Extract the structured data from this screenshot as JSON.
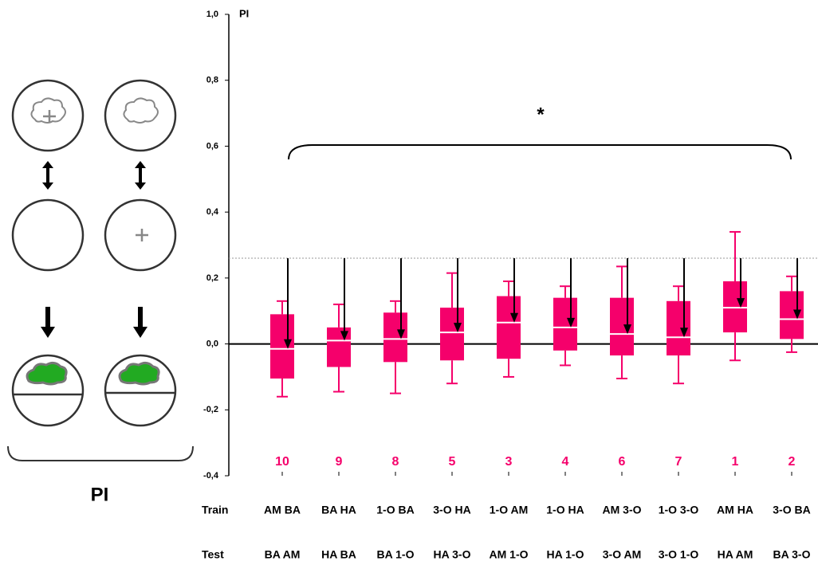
{
  "chart_data": {
    "type": "box",
    "y_label": "PI",
    "annotation": "*",
    "color": "#f5006b",
    "median_color": "#ffffff",
    "row_labels": [
      "Train",
      "Test"
    ],
    "categories": [
      "AM BA",
      "BA HA",
      "1-O BA",
      "3-O HA",
      "1-O AM",
      "1-O HA",
      "AM 3-O",
      "1-O 3-O",
      "AM HA",
      "3-O BA"
    ],
    "test_categories": [
      "BA AM",
      "HA BA",
      "BA 1-O",
      "HA 3-O",
      "AM 1-O",
      "HA 1-O",
      "3-O AM",
      "3-O 1-O",
      "HA AM",
      "BA 3-O"
    ],
    "ranks": [
      "10",
      "9",
      "8",
      "5",
      "3",
      "4",
      "6",
      "7",
      "1",
      "2"
    ],
    "boxes": [
      {
        "whisker_low": -0.16,
        "q1": -0.105,
        "median": -0.015,
        "q3": 0.09,
        "whisker_high": 0.13
      },
      {
        "whisker_low": -0.145,
        "q1": -0.07,
        "median": 0.01,
        "q3": 0.05,
        "whisker_high": 0.12
      },
      {
        "whisker_low": -0.15,
        "q1": -0.055,
        "median": 0.015,
        "q3": 0.095,
        "whisker_high": 0.13
      },
      {
        "whisker_low": -0.12,
        "q1": -0.05,
        "median": 0.035,
        "q3": 0.11,
        "whisker_high": 0.215
      },
      {
        "whisker_low": -0.1,
        "q1": -0.045,
        "median": 0.065,
        "q3": 0.145,
        "whisker_high": 0.19
      },
      {
        "whisker_low": -0.065,
        "q1": -0.02,
        "median": 0.05,
        "q3": 0.14,
        "whisker_high": 0.175
      },
      {
        "whisker_low": -0.105,
        "q1": -0.035,
        "median": 0.03,
        "q3": 0.14,
        "whisker_high": 0.235
      },
      {
        "whisker_low": -0.12,
        "q1": -0.035,
        "median": 0.02,
        "q3": 0.13,
        "whisker_high": 0.175
      },
      {
        "whisker_low": -0.05,
        "q1": 0.035,
        "median": 0.11,
        "q3": 0.19,
        "whisker_high": 0.34
      },
      {
        "whisker_low": -0.025,
        "q1": 0.015,
        "median": 0.075,
        "q3": 0.16,
        "whisker_high": 0.205
      }
    ],
    "reference_line": 0.26,
    "ylim": [
      -0.4,
      1.0
    ],
    "yticks": [
      {
        "value": -0.4,
        "label": "-0,4"
      },
      {
        "value": -0.2,
        "label": "-0,2"
      },
      {
        "value": 0,
        "label": "0,0"
      },
      {
        "value": 0.2,
        "label": "0,2"
      },
      {
        "value": 0.4,
        "label": "0,4"
      },
      {
        "value": 0.6,
        "label": "0,6"
      },
      {
        "value": 0.8,
        "label": "0,8"
      },
      {
        "value": 1.0,
        "label": "1,0"
      }
    ]
  },
  "diagram": {
    "label": "PI"
  }
}
